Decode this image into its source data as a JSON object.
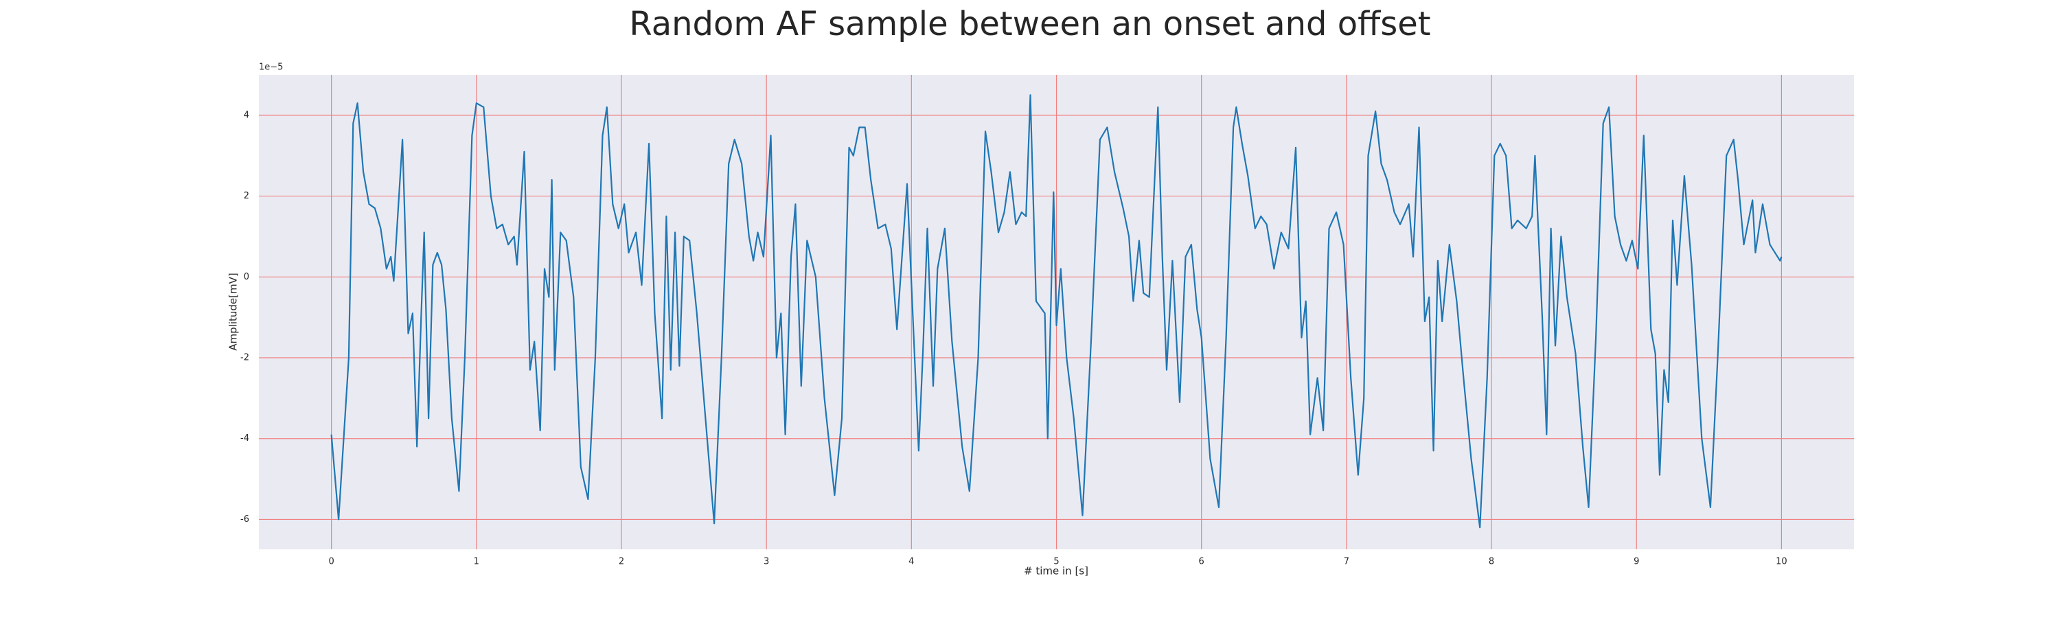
{
  "chart_data": {
    "type": "line",
    "title": "Random AF sample between an onset and offset",
    "x_label": "# time in [s]",
    "y_label": "Amplitude[mV]",
    "y_offset_text": "1e−5",
    "xlim": [
      -0.5,
      10.5
    ],
    "ylim": [
      -6.74,
      5.0
    ],
    "xticks": [
      0,
      1,
      2,
      3,
      4,
      5,
      6,
      7,
      8,
      9,
      10
    ],
    "yticks": [
      -6,
      -4,
      -2,
      0,
      2,
      4
    ],
    "grid": true,
    "grid_color": "#f08080",
    "background": "#eaeaf2",
    "series": [
      {
        "color": "#1f77b4",
        "x": [
          0.0,
          0.05,
          0.12,
          0.15,
          0.18,
          0.22,
          0.26,
          0.3,
          0.34,
          0.38,
          0.41,
          0.43,
          0.49,
          0.53,
          0.56,
          0.59,
          0.62,
          0.64,
          0.67,
          0.7,
          0.73,
          0.76,
          0.79,
          0.83,
          0.88,
          0.92,
          0.97,
          1.0,
          1.05,
          1.1,
          1.14,
          1.18,
          1.22,
          1.26,
          1.28,
          1.33,
          1.37,
          1.4,
          1.44,
          1.47,
          1.5,
          1.52,
          1.54,
          1.58,
          1.62,
          1.67,
          1.72,
          1.77,
          1.82,
          1.87,
          1.9,
          1.94,
          1.98,
          2.02,
          2.05,
          2.1,
          2.14,
          2.19,
          2.23,
          2.28,
          2.31,
          2.34,
          2.37,
          2.4,
          2.43,
          2.47,
          2.52,
          2.58,
          2.64,
          2.69,
          2.74,
          2.78,
          2.83,
          2.88,
          2.91,
          2.94,
          2.98,
          3.03,
          3.07,
          3.1,
          3.13,
          3.17,
          3.2,
          3.24,
          3.28,
          3.34,
          3.4,
          3.47,
          3.52,
          3.57,
          3.6,
          3.64,
          3.68,
          3.72,
          3.77,
          3.82,
          3.86,
          3.9,
          3.97,
          4.02,
          4.05,
          4.08,
          4.11,
          4.15,
          4.18,
          4.23,
          4.28,
          4.35,
          4.4,
          4.46,
          4.51,
          4.55,
          4.6,
          4.64,
          4.68,
          4.72,
          4.76,
          4.79,
          4.82,
          4.86,
          4.92,
          4.94,
          4.98,
          5.0,
          5.03,
          5.07,
          5.12,
          5.18,
          5.24,
          5.3,
          5.35,
          5.4,
          5.46,
          5.5,
          5.53,
          5.57,
          5.6,
          5.64,
          5.7,
          5.73,
          5.76,
          5.8,
          5.85,
          5.89,
          5.93,
          5.97,
          6.0,
          6.06,
          6.12,
          6.17,
          6.22,
          6.24,
          6.28,
          6.32,
          6.37,
          6.41,
          6.45,
          6.5,
          6.55,
          6.6,
          6.65,
          6.69,
          6.72,
          6.75,
          6.8,
          6.84,
          6.88,
          6.93,
          6.98,
          7.03,
          7.08,
          7.12,
          7.15,
          7.2,
          7.24,
          7.28,
          7.33,
          7.37,
          7.43,
          7.46,
          7.5,
          7.54,
          7.57,
          7.6,
          7.63,
          7.66,
          7.71,
          7.76,
          7.81,
          7.86,
          7.92,
          7.97,
          8.02,
          8.06,
          8.1,
          8.14,
          8.18,
          8.24,
          8.28,
          8.3,
          8.35,
          8.38,
          8.41,
          8.44,
          8.48,
          8.52,
          8.58,
          8.63,
          8.67,
          8.72,
          8.77,
          8.81,
          8.85,
          8.89,
          8.93,
          8.97,
          9.01,
          9.05,
          9.1,
          9.13,
          9.16,
          9.19,
          9.22,
          9.25,
          9.28,
          9.33,
          9.38,
          9.45,
          9.51,
          9.56,
          9.62,
          9.67,
          9.7,
          9.74,
          9.8,
          9.82,
          9.87,
          9.92,
          9.99,
          10.0
        ],
        "values": [
          -3.9,
          -6.0,
          -2,
          3.8,
          4.3,
          2.6,
          1.8,
          1.7,
          1.2,
          0.2,
          0.5,
          -0.1,
          3.4,
          -1.4,
          -0.9,
          -4.2,
          -0.9,
          1.1,
          -3.5,
          0.3,
          0.6,
          0.3,
          -0.8,
          -3.5,
          -5.3,
          -2,
          3.5,
          4.3,
          4.2,
          2,
          1.2,
          1.3,
          0.8,
          1,
          0.3,
          3.1,
          -2.3,
          -1.6,
          -3.8,
          0.2,
          -0.5,
          2.4,
          -2.3,
          1.1,
          0.9,
          -0.5,
          -4.7,
          -5.5,
          -2,
          3.5,
          4.2,
          1.8,
          1.2,
          1.8,
          0.6,
          1.1,
          -0.2,
          3.3,
          -0.9,
          -3.5,
          1.5,
          -2.3,
          1.1,
          -2.2,
          1.0,
          0.9,
          -0.9,
          -3.5,
          -6.1,
          -2,
          2.8,
          3.4,
          2.8,
          1.0,
          0.4,
          1.1,
          0.5,
          3.5,
          -2,
          -0.9,
          -3.9,
          0.5,
          1.8,
          -2.7,
          0.9,
          0,
          -3,
          -5.4,
          -3.5,
          3.2,
          3,
          3.7,
          3.7,
          2.4,
          1.2,
          1.3,
          0.7,
          -1.3,
          2.3,
          -1.8,
          -4.3,
          -1.8,
          1.2,
          -2.7,
          0.2,
          1.2,
          -1.6,
          -4.2,
          -5.3,
          -2,
          3.6,
          2.6,
          1.1,
          1.6,
          2.6,
          1.3,
          1.6,
          1.5,
          4.5,
          -0.6,
          -0.9,
          -4,
          2.1,
          -1.2,
          0.2,
          -2,
          -3.5,
          -5.9,
          -1.5,
          3.4,
          3.7,
          2.6,
          1.7,
          1.0,
          -0.6,
          0.9,
          -0.4,
          -0.5,
          4.2,
          0.5,
          -2.3,
          0.4,
          -3.1,
          0.5,
          0.8,
          -0.8,
          -1.5,
          -4.5,
          -5.7,
          -1.5,
          3.7,
          4.2,
          3.3,
          2.5,
          1.2,
          1.5,
          1.3,
          0.2,
          1.1,
          0.7,
          3.2,
          -1.5,
          -0.6,
          -3.9,
          -2.5,
          -3.8,
          1.2,
          1.6,
          0.8,
          -2.5,
          -4.9,
          -3,
          3,
          4.1,
          2.8,
          2.4,
          1.6,
          1.3,
          1.8,
          0.5,
          3.7,
          -1.1,
          -0.5,
          -4.3,
          0.4,
          -1.1,
          0.8,
          -0.6,
          -2.6,
          -4.5,
          -6.2,
          -2.5,
          3,
          3.3,
          3.0,
          1.2,
          1.4,
          1.2,
          1.5,
          3.0,
          -1.0,
          -3.9,
          1.2,
          -1.7,
          1.0,
          -0.5,
          -1.9,
          -4.2,
          -5.7,
          -1.5,
          3.8,
          4.2,
          1.5,
          0.8,
          0.4,
          0.9,
          0.2,
          3.5,
          -1.3,
          -1.9,
          -4.9,
          -2.3,
          -3.1,
          1.4,
          -0.2,
          2.5,
          0.3,
          -4,
          -5.7,
          -2,
          3,
          3.4,
          2.4,
          0.8,
          1.9,
          0.6,
          1.8,
          0.8,
          0.4,
          0.5
        ]
      }
    ]
  }
}
